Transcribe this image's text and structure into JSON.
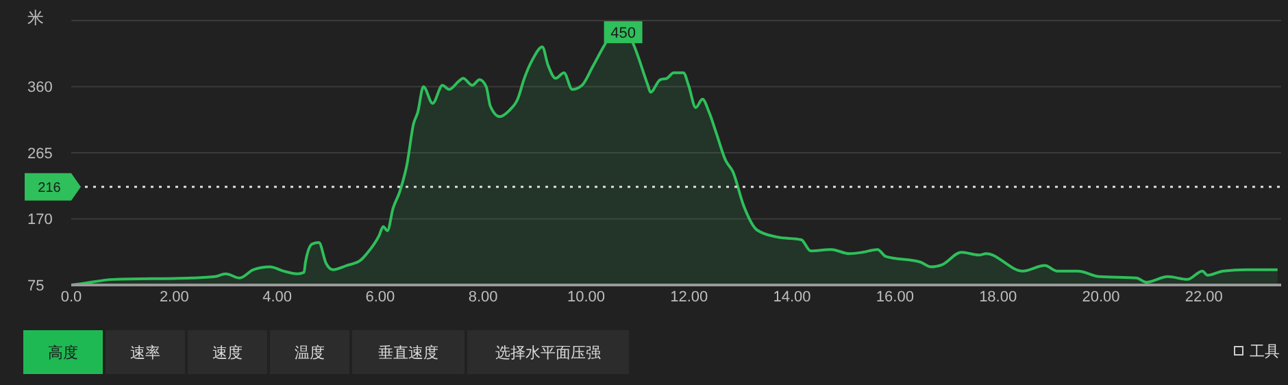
{
  "chart_data": {
    "type": "area",
    "ylabel": "米",
    "x": [
      0,
      0.21,
      0.82,
      2.34,
      2.79,
      3.0,
      3.27,
      3.54,
      3.86,
      4.12,
      4.39,
      4.52,
      4.55,
      4.68,
      4.81,
      4.95,
      5.08,
      5.35,
      5.61,
      5.74,
      5.98,
      6.06,
      6.14,
      6.25,
      6.38,
      6.52,
      6.65,
      6.73,
      6.84,
      7.02,
      7.21,
      7.34,
      7.53,
      7.61,
      7.79,
      7.93,
      8.06,
      8.14,
      8.32,
      8.51,
      8.67,
      8.8,
      8.96,
      9.15,
      9.26,
      9.41,
      9.57,
      9.73,
      9.92,
      10.13,
      10.32,
      10.4,
      10.72,
      10.93,
      11.2,
      11.25,
      11.44,
      11.57,
      11.7,
      11.89,
      11.99,
      12.13,
      12.26,
      12.39,
      12.53,
      12.71,
      12.85,
      13.06,
      13.32,
      13.7,
      14.18,
      14.36,
      14.76,
      15.11,
      15.37,
      15.66,
      15.82,
      16.49,
      16.7,
      16.91,
      17.29,
      17.63,
      17.77,
      18.48,
      18.91,
      19.15,
      19.55,
      19.97,
      20.69,
      20.88,
      21.3,
      21.68,
      21.97,
      22.07,
      22.37,
      22.82,
      23.43
    ],
    "series": [
      {
        "color": "#2fbf5b",
        "values": [
          75,
          77,
          83,
          85,
          87,
          91,
          85,
          97,
          101,
          95,
          91,
          93,
          108,
          134,
          136,
          106,
          97,
          103,
          110,
          120,
          146,
          159,
          153,
          185,
          209,
          248,
          307,
          323,
          360,
          336,
          362,
          356,
          368,
          372,
          362,
          370,
          360,
          332,
          317,
          326,
          342,
          372,
          399,
          417,
          391,
          372,
          380,
          356,
          362,
          389,
          415,
          425,
          450,
          419,
          362,
          352,
          370,
          372,
          380,
          380,
          362,
          330,
          342,
          323,
          293,
          254,
          238,
          189,
          154,
          144,
          140,
          124,
          126,
          120,
          122,
          126,
          116,
          108,
          101,
          104,
          122,
          118,
          120,
          95,
          103,
          95,
          95,
          87,
          85,
          79,
          87,
          83,
          95,
          89,
          95,
          97,
          97
        ]
      }
    ],
    "xlim": [
      0,
      23.5
    ],
    "ylim": [
      75,
      455
    ],
    "xticks": [
      {
        "value": 0,
        "label": "0.0"
      },
      {
        "value": 2,
        "label": "2.00"
      },
      {
        "value": 4,
        "label": "4.00"
      },
      {
        "value": 6,
        "label": "6.00"
      },
      {
        "value": 8,
        "label": "8.00"
      },
      {
        "value": 10,
        "label": "10.00"
      },
      {
        "value": 12,
        "label": "12.00"
      },
      {
        "value": 14,
        "label": "14.00"
      },
      {
        "value": 16,
        "label": "16.00"
      },
      {
        "value": 18,
        "label": "18.00"
      },
      {
        "value": 20,
        "label": "20.00"
      },
      {
        "value": 22,
        "label": "22.00"
      }
    ],
    "yticks": [
      75,
      170,
      265,
      360,
      {
        "value": 455,
        "label": null
      }
    ],
    "grid": "y",
    "ref_lines": [
      {
        "axis": "y",
        "value": 216,
        "label": "216",
        "color": "#e0e0e0",
        "line_style": "dotted"
      }
    ],
    "annotations": [
      {
        "text": "450",
        "x": 10.72,
        "y": 450
      },
      "高度",
      "速率",
      "速度",
      "温度",
      "垂直速度",
      "选择水平面压强",
      "工具"
    ]
  }
}
